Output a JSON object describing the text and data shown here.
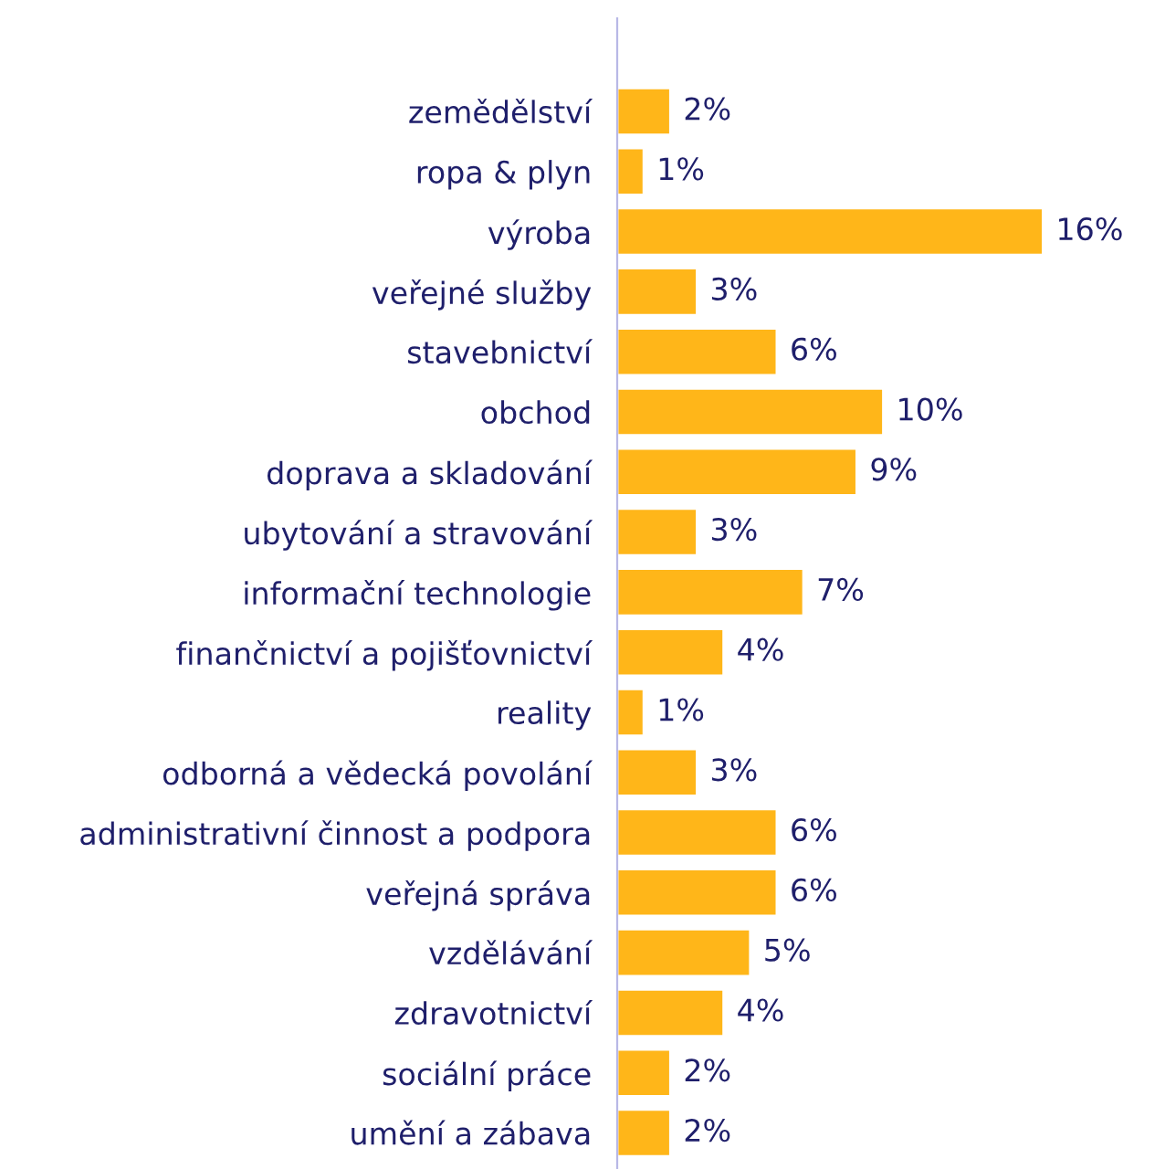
{
  "chart_data": {
    "type": "bar",
    "orientation": "horizontal",
    "tick_labels": "y",
    "data_labels": true,
    "color": "#ffb619",
    "grid": false,
    "legend": false,
    "categories": [
      "zemědělství",
      "ropa & plyn",
      "výroba",
      "veřejné služby",
      "stavebnictví",
      "obchod",
      "doprava a skladování",
      "ubytování a stravování",
      "informační technologie",
      "finančnictví a pojišťovnictví",
      "reality",
      "odborná a vědecká povolání",
      "administrativní činnost a podpora",
      "veřejná správa",
      "vzdělávání",
      "zdravotnictví",
      "sociální práce",
      "umění a zábava"
    ],
    "values": [
      2,
      1,
      16,
      3,
      6,
      10,
      9,
      3,
      7,
      4,
      1,
      3,
      6,
      6,
      5,
      4,
      2,
      2
    ],
    "value_labels": [
      "2%",
      "1%",
      "16%",
      "3%",
      "6%",
      "10%",
      "9%",
      "3%",
      "7%",
      "4%",
      "1%",
      "3%",
      "6%",
      "6%",
      "5%",
      "4%",
      "2%",
      "2%"
    ]
  }
}
